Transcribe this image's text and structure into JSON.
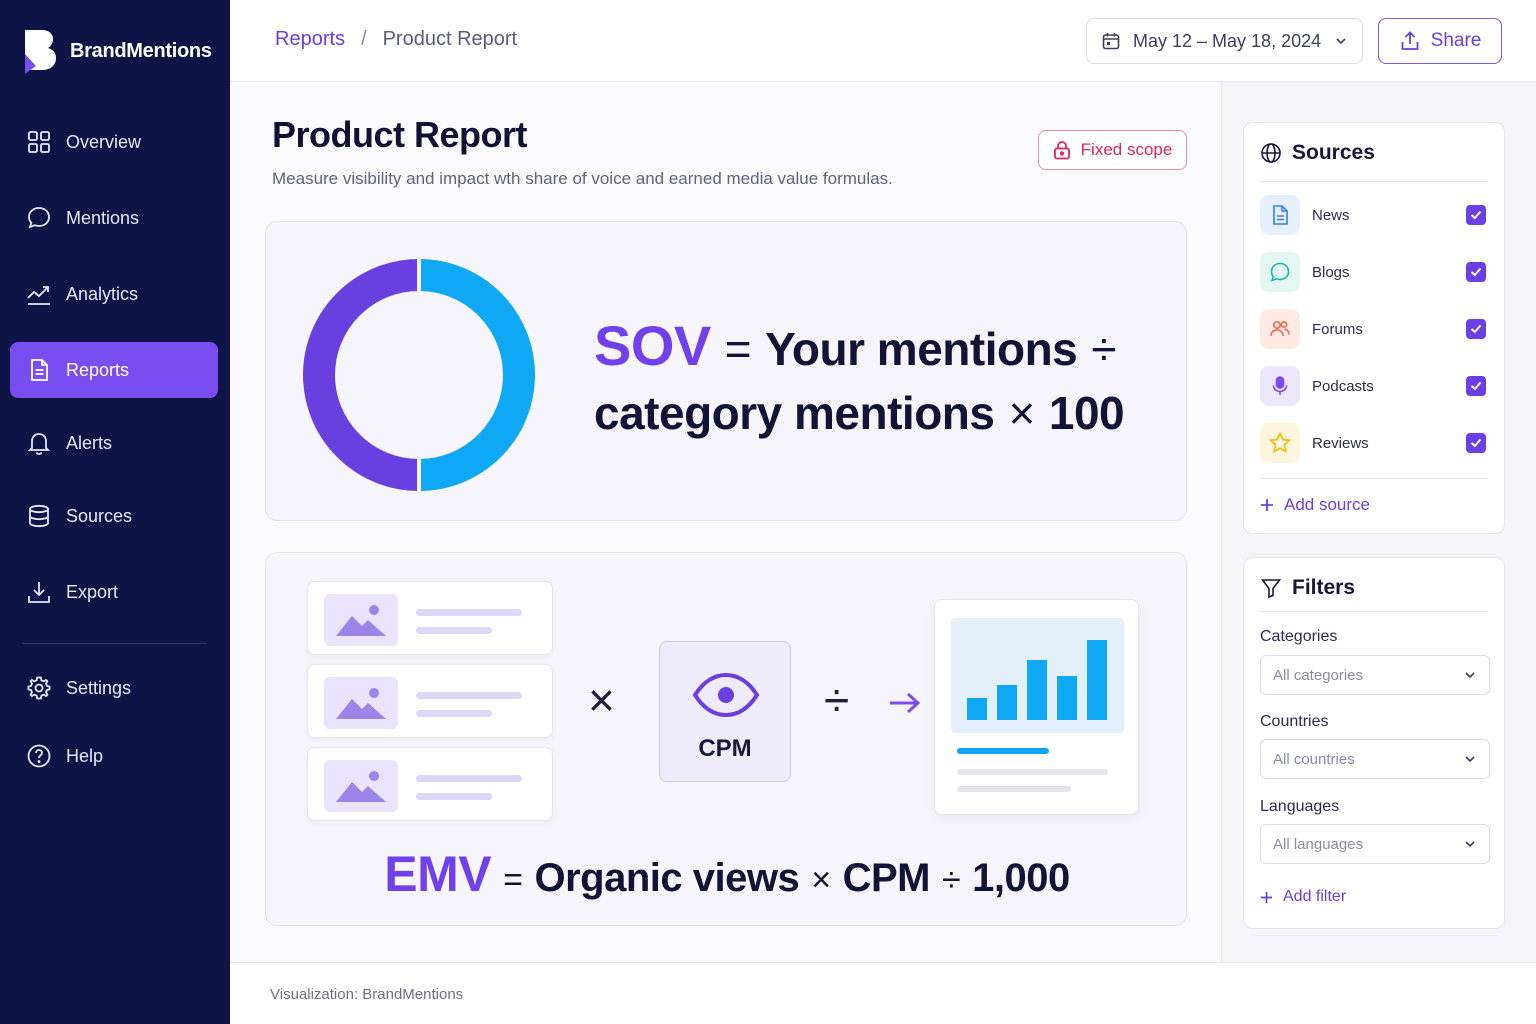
{
  "app": {
    "name": "BrandMentions"
  },
  "sidebar": {
    "items": [
      {
        "label": "Overview",
        "icon": "grid-icon"
      },
      {
        "label": "Mentions",
        "icon": "chat-bubble-icon"
      },
      {
        "label": "Analytics",
        "icon": "trend-line-icon"
      },
      {
        "label": "Reports",
        "icon": "document-icon",
        "active": true
      },
      {
        "label": "Alerts",
        "icon": "bell-icon"
      },
      {
        "label": "Sources",
        "icon": "database-icon"
      },
      {
        "label": "Export",
        "icon": "download-icon"
      },
      {
        "label": "Settings",
        "icon": "gear-icon"
      },
      {
        "label": "Help",
        "icon": "help-circle-icon"
      }
    ]
  },
  "header": {
    "breadcrumb": {
      "parent": "Reports",
      "separator": "/",
      "current": "Product Report"
    },
    "date_range": "May 12 – May 18, 2024",
    "share_label": "Share"
  },
  "main": {
    "title": "Product Report",
    "subtitle": "Measure visibility and impact wth share of voice and earned media value formulas.",
    "scope_badge": "Fixed scope",
    "sov": {
      "keyword": "SOV",
      "eq": "=",
      "part1": "Your mentions",
      "div": "÷",
      "part2": "category mentions",
      "times": "×",
      "factor": "100",
      "donut_segments": [
        {
          "share": 0.5,
          "color": "#6a3fe0"
        },
        {
          "share": 0.5,
          "color": "#0ea8f4"
        }
      ]
    },
    "emv": {
      "keyword": "EMV",
      "eq": "=",
      "part1": "Organic views",
      "times": "×",
      "part2": "CPM",
      "div": "÷",
      "factor": "1,000",
      "cpm_label": "CPM",
      "op_times": "×",
      "op_div": "÷"
    }
  },
  "sources": {
    "title": "Sources",
    "items": [
      {
        "label": "News",
        "icon": "news-document-icon",
        "checked": true,
        "color": "#2f80ed"
      },
      {
        "label": "Blogs",
        "icon": "blog-chat-icon",
        "checked": true,
        "color": "#10b8a6"
      },
      {
        "label": "Forums",
        "icon": "forum-users-icon",
        "checked": true,
        "color": "#f26a4b"
      },
      {
        "label": "Podcasts",
        "icon": "microphone-icon",
        "checked": true,
        "color": "#7a4df0"
      },
      {
        "label": "Reviews",
        "icon": "star-icon",
        "checked": true,
        "color": "#f5b800"
      }
    ],
    "add_label": "Add source"
  },
  "filters": {
    "title": "Filters",
    "categories_label": "Categories",
    "categories_value": "All categories",
    "countries_label": "Countries",
    "countries_value": "All countries",
    "languages_label": "Languages",
    "languages_value": "All languages",
    "add_label": "Add filter"
  },
  "footer": {
    "credit": "Visualization: BrandMentions"
  },
  "colors": {
    "accent": "#6a3fe0",
    "sidebar": "#0e1446",
    "cyan": "#0ea8f4",
    "danger": "#e1245a"
  }
}
